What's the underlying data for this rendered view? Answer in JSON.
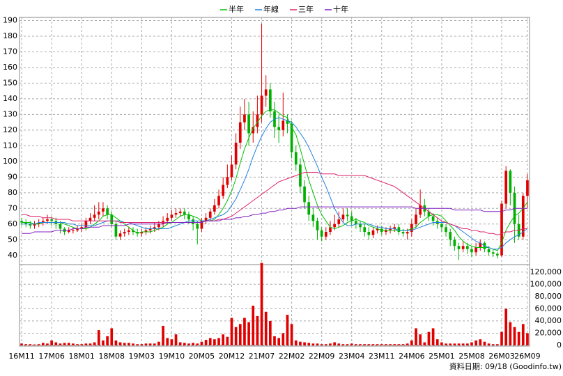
{
  "chart_data": {
    "type": "candlestick",
    "categories": [
      "16M11",
      null,
      null,
      null,
      null,
      null,
      null,
      "17M06",
      null,
      null,
      null,
      null,
      null,
      null,
      "18M01",
      null,
      null,
      null,
      null,
      null,
      null,
      "18M08",
      null,
      null,
      null,
      null,
      null,
      null,
      "19M03",
      null,
      null,
      null,
      null,
      null,
      null,
      "19M10",
      null,
      null,
      null,
      null,
      null,
      null,
      "20M05",
      null,
      null,
      null,
      null,
      null,
      null,
      "20M12",
      null,
      null,
      null,
      null,
      null,
      null,
      "21M07",
      null,
      null,
      null,
      null,
      null,
      null,
      "22M02",
      null,
      null,
      null,
      null,
      null,
      null,
      "22M09",
      null,
      null,
      null,
      null,
      null,
      null,
      "23M04",
      null,
      null,
      null,
      null,
      null,
      null,
      "23M11",
      null,
      null,
      null,
      null,
      null,
      null,
      "24M06",
      null,
      null,
      null,
      null,
      null,
      null,
      "25M01",
      null,
      null,
      null,
      null,
      null,
      null,
      "25M08",
      null,
      null,
      null,
      null,
      null,
      null,
      "26M03",
      null,
      null,
      null,
      null,
      null,
      "26M09"
    ],
    "open": [
      62,
      61,
      60,
      59,
      60,
      61,
      62,
      63,
      62,
      60,
      57,
      55,
      56,
      56,
      57,
      58,
      62,
      64,
      66,
      68,
      70,
      66,
      60,
      52,
      54,
      55,
      56,
      55,
      54,
      55,
      56,
      57,
      58,
      60,
      62,
      64,
      66,
      67,
      68,
      66,
      63,
      60,
      57,
      62,
      64,
      68,
      72,
      78,
      85,
      90,
      98,
      112,
      125,
      130,
      118,
      122,
      130,
      142,
      146,
      132,
      122,
      120,
      126,
      124,
      106,
      98,
      84,
      74,
      66,
      62,
      56,
      52,
      55,
      58,
      60,
      63,
      66,
      65,
      62,
      60,
      58,
      55,
      53,
      56,
      57,
      55,
      56,
      57,
      58,
      55,
      54,
      55,
      60,
      66,
      72,
      68,
      65,
      62,
      60,
      58,
      55,
      50,
      46,
      44,
      46,
      44,
      42,
      45,
      48,
      44,
      42,
      41,
      40,
      73,
      94,
      80,
      60,
      52,
      78
    ],
    "high": [
      64,
      63,
      62,
      62,
      63,
      64,
      66,
      65,
      64,
      62,
      58,
      58,
      58,
      59,
      60,
      64,
      67,
      72,
      74,
      74,
      72,
      68,
      62,
      56,
      57,
      58,
      58,
      57,
      57,
      58,
      59,
      61,
      62,
      65,
      67,
      69,
      70,
      70,
      70,
      68,
      65,
      62,
      64,
      67,
      70,
      76,
      82,
      90,
      98,
      104,
      118,
      135,
      140,
      138,
      132,
      142,
      188,
      155,
      150,
      138,
      130,
      144,
      130,
      126,
      110,
      102,
      88,
      78,
      70,
      64,
      58,
      58,
      62,
      66,
      68,
      70,
      70,
      68,
      64,
      62,
      60,
      58,
      58,
      59,
      59,
      58,
      59,
      60,
      60,
      57,
      57,
      63,
      70,
      82,
      76,
      70,
      67,
      64,
      62,
      60,
      57,
      52,
      48,
      49,
      48,
      46,
      48,
      50,
      49,
      46,
      44,
      42,
      75,
      97,
      95,
      84,
      66,
      80,
      92
    ],
    "low": [
      59,
      58,
      57,
      57,
      58,
      59,
      60,
      59,
      57,
      54,
      53,
      54,
      54,
      55,
      55,
      56,
      60,
      62,
      63,
      65,
      63,
      58,
      50,
      50,
      52,
      53,
      53,
      52,
      52,
      53,
      54,
      55,
      56,
      58,
      60,
      62,
      64,
      65,
      63,
      60,
      56,
      47,
      55,
      60,
      62,
      66,
      70,
      76,
      83,
      88,
      95,
      108,
      120,
      110,
      112,
      118,
      125,
      135,
      128,
      115,
      112,
      116,
      118,
      102,
      94,
      80,
      70,
      62,
      58,
      50,
      49,
      50,
      53,
      56,
      58,
      61,
      62,
      59,
      57,
      55,
      52,
      50,
      51,
      54,
      53,
      53,
      54,
      55,
      53,
      52,
      50,
      52,
      58,
      64,
      65,
      62,
      59,
      57,
      55,
      52,
      46,
      43,
      37,
      42,
      41,
      39,
      40,
      43,
      42,
      40,
      39,
      38,
      39,
      70,
      72,
      48,
      50,
      50,
      70
    ],
    "close": [
      61,
      60,
      59,
      60,
      61,
      62,
      63,
      62,
      60,
      57,
      55,
      56,
      56,
      57,
      58,
      62,
      64,
      66,
      68,
      70,
      66,
      60,
      52,
      54,
      55,
      56,
      55,
      54,
      55,
      56,
      57,
      58,
      60,
      62,
      64,
      66,
      67,
      68,
      66,
      63,
      60,
      57,
      62,
      64,
      68,
      72,
      78,
      85,
      90,
      98,
      112,
      125,
      130,
      118,
      122,
      130,
      142,
      146,
      132,
      122,
      120,
      126,
      124,
      106,
      98,
      84,
      74,
      66,
      62,
      56,
      52,
      55,
      58,
      60,
      63,
      66,
      65,
      62,
      60,
      58,
      55,
      53,
      56,
      57,
      55,
      56,
      57,
      58,
      55,
      54,
      55,
      60,
      66,
      72,
      68,
      65,
      62,
      60,
      58,
      55,
      50,
      46,
      44,
      46,
      44,
      42,
      45,
      48,
      44,
      42,
      41,
      40,
      73,
      94,
      80,
      60,
      52,
      78,
      88
    ],
    "up_color": "#e00000",
    "down_color": "#00b000",
    "ylim": [
      35,
      192
    ],
    "yticks": [
      40,
      50,
      60,
      70,
      80,
      90,
      100,
      110,
      120,
      130,
      140,
      150,
      160,
      170,
      180,
      190
    ],
    "series": [
      {
        "name": "半年",
        "color": "#00c000",
        "values": [
          61,
          61,
          61,
          60,
          60,
          61,
          61,
          61,
          61,
          61,
          60,
          59,
          58,
          57,
          57,
          57,
          58,
          60,
          62,
          65,
          66,
          66,
          64,
          62,
          60,
          58,
          56,
          54,
          55,
          55,
          55,
          56,
          57,
          58,
          60,
          61,
          63,
          65,
          66,
          66,
          65,
          64,
          62,
          62,
          62,
          63,
          66,
          70,
          75,
          81,
          89,
          99,
          108,
          115,
          121,
          125,
          129,
          132,
          133,
          133,
          131,
          129,
          128,
          122,
          117,
          108,
          98,
          88,
          80,
          72,
          66,
          62,
          58,
          57,
          58,
          59,
          61,
          62,
          63,
          62,
          61,
          59,
          58,
          57,
          56,
          56,
          56,
          56,
          56,
          56,
          56,
          57,
          58,
          61,
          63,
          65,
          66,
          66,
          65,
          62,
          59,
          56,
          52,
          49,
          47,
          46,
          45,
          45,
          45,
          45,
          44,
          43,
          48,
          56,
          61,
          65,
          67,
          70,
          74
        ]
      },
      {
        "name": "年線",
        "color": "#2080e0",
        "values": [
          60,
          60,
          60,
          60,
          61,
          61,
          61,
          61,
          61,
          61,
          61,
          60,
          60,
          59,
          59,
          59,
          59,
          59,
          60,
          61,
          62,
          62,
          62,
          62,
          61,
          61,
          60,
          59,
          58,
          57,
          57,
          57,
          57,
          57,
          57,
          58,
          59,
          60,
          61,
          62,
          62,
          62,
          62,
          62,
          63,
          64,
          65,
          66,
          68,
          72,
          76,
          82,
          88,
          95,
          103,
          110,
          116,
          121,
          125,
          127,
          128,
          127,
          126,
          125,
          122,
          118,
          114,
          109,
          103,
          97,
          90,
          84,
          77,
          70,
          65,
          61,
          59,
          59,
          60,
          60,
          60,
          60,
          59,
          58,
          58,
          57,
          57,
          57,
          56,
          56,
          56,
          56,
          57,
          58,
          59,
          60,
          61,
          61,
          61,
          61,
          60,
          59,
          57,
          55,
          53,
          51,
          49,
          48,
          46,
          45,
          44,
          44,
          45,
          48,
          50,
          52,
          53,
          55,
          57
        ]
      },
      {
        "name": "三年",
        "color": "#e0206a",
        "values": [
          66,
          66,
          65,
          65,
          65,
          64,
          64,
          64,
          63,
          63,
          63,
          63,
          62,
          62,
          62,
          62,
          62,
          62,
          62,
          62,
          62,
          62,
          62,
          61,
          61,
          61,
          61,
          61,
          61,
          61,
          61,
          61,
          61,
          61,
          61,
          61,
          61,
          61,
          61,
          61,
          61,
          61,
          61,
          62,
          62,
          62,
          63,
          63,
          64,
          65,
          67,
          69,
          71,
          73,
          75,
          77,
          79,
          81,
          83,
          85,
          87,
          88,
          89,
          90,
          91,
          92,
          93,
          93,
          93,
          93,
          92,
          92,
          92,
          92,
          91,
          91,
          91,
          91,
          91,
          91,
          91,
          90,
          89,
          88,
          87,
          86,
          85,
          84,
          82,
          80,
          78,
          76,
          74,
          72,
          70,
          68,
          66,
          64,
          62,
          61,
          60,
          59,
          58,
          57,
          57,
          56,
          56,
          55,
          55,
          54,
          54,
          53,
          54,
          55,
          55,
          56,
          56,
          57,
          57
        ]
      },
      {
        "name": "十年",
        "color": "#8020c0",
        "values": [
          54,
          54,
          54,
          55,
          55,
          55,
          55,
          55,
          56,
          56,
          56,
          56,
          57,
          57,
          57,
          58,
          58,
          58,
          58,
          59,
          59,
          59,
          59,
          59,
          59,
          60,
          60,
          60,
          60,
          60,
          60,
          60,
          60,
          60,
          61,
          61,
          61,
          61,
          61,
          61,
          61,
          61,
          61,
          62,
          62,
          62,
          62,
          63,
          63,
          63,
          64,
          64,
          65,
          65,
          66,
          66,
          67,
          67,
          68,
          68,
          69,
          69,
          70,
          70,
          70,
          71,
          71,
          71,
          71,
          71,
          71,
          71,
          71,
          71,
          71,
          71,
          71,
          71,
          71,
          71,
          71,
          71,
          71,
          71,
          71,
          71,
          71,
          71,
          71,
          71,
          71,
          71,
          70,
          70,
          70,
          70,
          70,
          70,
          70,
          70,
          70,
          69,
          69,
          69,
          69,
          69,
          69,
          69,
          68,
          68,
          68,
          68,
          68,
          69,
          69,
          70,
          70,
          70,
          70
        ]
      }
    ],
    "volume": {
      "color": "#e00000",
      "values": [
        3000,
        2000,
        2000,
        1500,
        2000,
        4000,
        3000,
        8000,
        5000,
        3000,
        4000,
        4000,
        3000,
        2000,
        2000,
        3000,
        3000,
        5000,
        25000,
        8000,
        15000,
        28000,
        8000,
        5000,
        4000,
        4000,
        3000,
        2000,
        2000,
        3000,
        3000,
        3000,
        6000,
        32000,
        12000,
        10000,
        18000,
        5000,
        4000,
        3000,
        4000,
        3000,
        6000,
        9000,
        12000,
        10000,
        12000,
        18000,
        14000,
        45000,
        30000,
        35000,
        45000,
        38000,
        65000,
        48000,
        135000,
        55000,
        40000,
        15000,
        12000,
        20000,
        50000,
        35000,
        8000,
        6000,
        5000,
        4000,
        3000,
        3000,
        2000,
        2000,
        3000,
        5000,
        3000,
        2000,
        2000,
        3000,
        2000,
        2000,
        2000,
        2000,
        2000,
        2000,
        2000,
        2000,
        2000,
        2000,
        2000,
        2000,
        3000,
        8000,
        28000,
        18000,
        5000,
        22000,
        28000,
        10000,
        5000,
        3000,
        3000,
        3000,
        3000,
        3000,
        3000,
        5000,
        8000,
        10000,
        6000,
        3000,
        2000,
        2000,
        22000,
        60000,
        38000,
        30000,
        22000,
        35000,
        20000
      ],
      "ylim": [
        0,
        130000
      ],
      "yticks": [
        0,
        {
          "value": 20000,
          "label": "20,000"
        },
        {
          "value": 40000,
          "label": "40,000"
        },
        {
          "value": 60000,
          "label": "60,000"
        },
        {
          "value": 80000,
          "label": "80,000"
        },
        {
          "value": 100000,
          "label": "100,000"
        },
        {
          "value": 120000,
          "label": "120,000"
        }
      ]
    },
    "grid": true,
    "footer": "資料日期: 09/18 (Goodinfo.tw)"
  }
}
